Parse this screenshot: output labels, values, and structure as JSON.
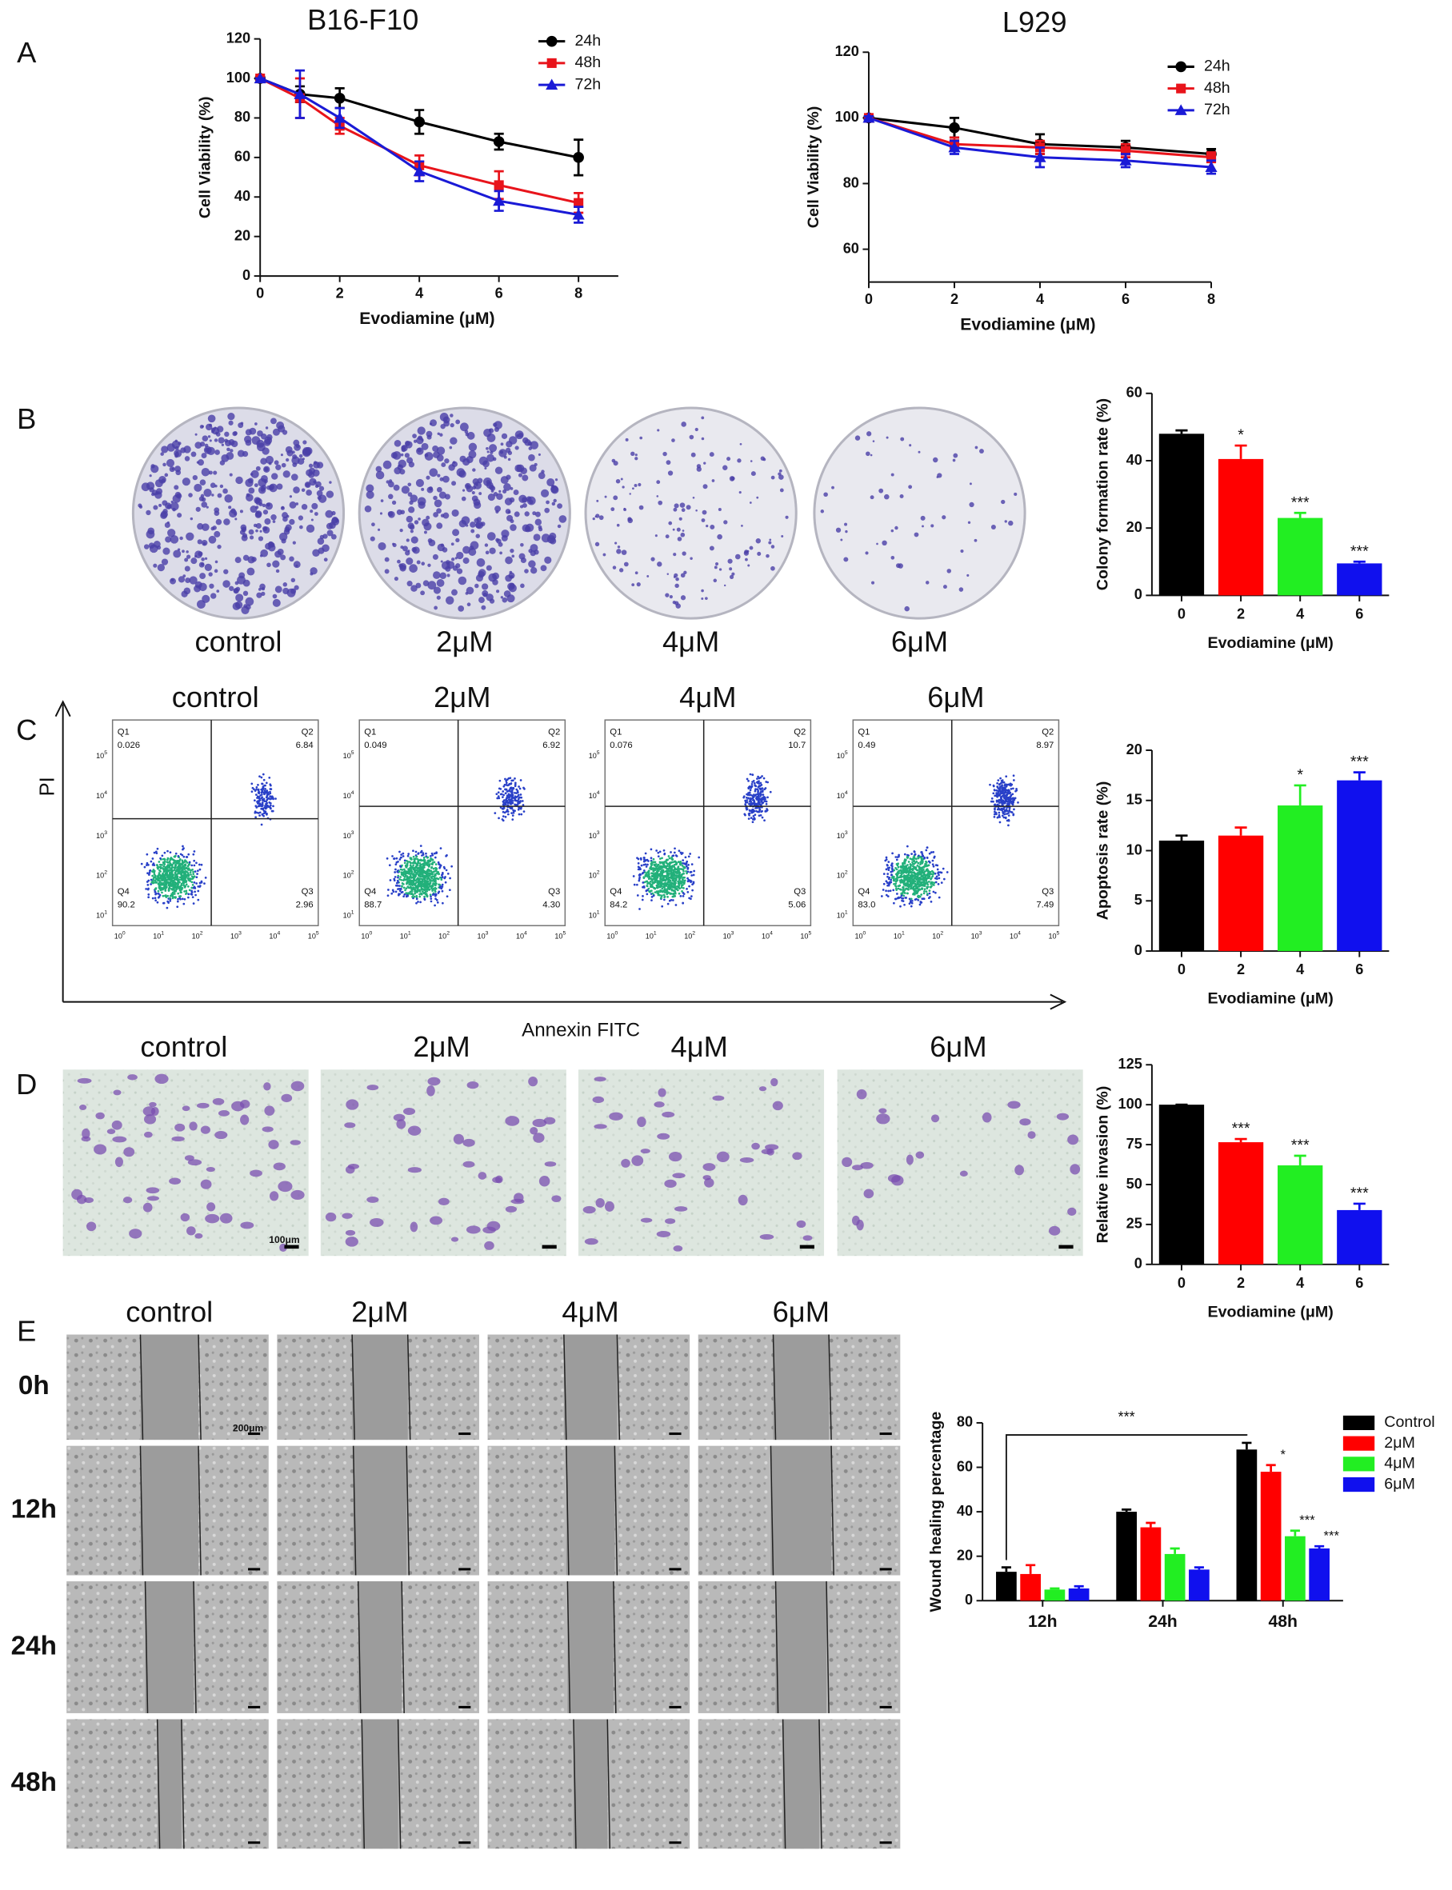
{
  "chart_data": [
    {
      "type": "line",
      "title": "B16-F10",
      "x": [
        0,
        1,
        2,
        4,
        6,
        8
      ],
      "xlim": [
        0,
        9
      ],
      "xticks": [
        0,
        2,
        4,
        6,
        8
      ],
      "ylim": [
        0,
        120
      ],
      "yticks": [
        0,
        20,
        40,
        60,
        80,
        100,
        120
      ],
      "x_label": "Evodiamine (μM)",
      "y_label": "Cell Viability (%)",
      "legend": "upper right",
      "series": [
        {
          "name": "24h",
          "color": "#000000",
          "marker": "circle",
          "values": [
            100,
            92,
            90,
            78,
            68,
            60
          ],
          "errors": [
            0,
            4,
            5,
            6,
            4,
            9
          ]
        },
        {
          "name": "48h",
          "color": "#e8141b",
          "marker": "square",
          "values": [
            100,
            90,
            76,
            56,
            46,
            37
          ],
          "errors": [
            0,
            10,
            4,
            5,
            7,
            5
          ]
        },
        {
          "name": "72h",
          "color": "#1a1ad6",
          "marker": "triangle",
          "values": [
            100,
            92,
            80,
            53,
            38,
            31
          ],
          "errors": [
            0,
            12,
            5,
            5,
            5,
            4
          ]
        }
      ]
    },
    {
      "type": "line",
      "title": "L929",
      "x": [
        0,
        2,
        4,
        6,
        8
      ],
      "xlim": [
        0,
        8
      ],
      "xticks": [
        0,
        2,
        4,
        6,
        8
      ],
      "ylim": [
        50,
        120
      ],
      "yticks": [
        60,
        80,
        100,
        120
      ],
      "x_label": "Evodiamine (μM)",
      "y_label": "Cell Viability (%)",
      "legend": "upper right",
      "series": [
        {
          "name": "24h",
          "color": "#000000",
          "marker": "circle",
          "values": [
            100,
            97,
            92,
            91,
            89
          ],
          "errors": [
            0.5,
            3,
            3,
            2,
            1.5
          ]
        },
        {
          "name": "48h",
          "color": "#e8141b",
          "marker": "square",
          "values": [
            100,
            92,
            91,
            90,
            88
          ],
          "errors": [
            0.5,
            2,
            2,
            2,
            1.5
          ]
        },
        {
          "name": "72h",
          "color": "#1a1ad6",
          "marker": "triangle",
          "values": [
            100,
            91,
            88,
            87,
            85
          ],
          "errors": [
            0.5,
            2,
            3,
            2,
            2
          ]
        }
      ]
    },
    {
      "type": "bar",
      "categories": [
        "0",
        "2",
        "4",
        "6"
      ],
      "values": [
        48,
        40.5,
        23,
        9.5
      ],
      "errors": [
        1,
        4,
        1.5,
        0.5
      ],
      "colors": [
        "#000000",
        "#ff0000",
        "#22ee22",
        "#1010ee"
      ],
      "stars": [
        null,
        "*",
        "***",
        "***"
      ],
      "ylim": [
        0,
        60
      ],
      "yticks": [
        0,
        20,
        40,
        60
      ],
      "x_label": "Evodiamine (μM)",
      "y_label": "Colony formation rate (%)"
    },
    {
      "type": "bar",
      "categories": [
        "0",
        "2",
        "4",
        "6"
      ],
      "values": [
        11,
        11.5,
        14.5,
        17
      ],
      "errors": [
        0.5,
        0.8,
        2,
        0.8
      ],
      "colors": [
        "#000000",
        "#ff0000",
        "#22ee22",
        "#1010ee"
      ],
      "stars": [
        null,
        null,
        "*",
        "***"
      ],
      "ylim": [
        0,
        20
      ],
      "yticks": [
        0,
        5,
        10,
        15,
        20
      ],
      "x_label": "Evodiamine (μM)",
      "y_label": "Apoptosis rate (%)"
    },
    {
      "type": "bar",
      "categories": [
        "0",
        "2",
        "4",
        "6"
      ],
      "values": [
        100,
        76.5,
        62,
        34
      ],
      "errors": [
        0,
        2,
        6,
        4
      ],
      "colors": [
        "#000000",
        "#ff0000",
        "#22ee22",
        "#1010ee"
      ],
      "stars": [
        null,
        "***",
        "***",
        "***"
      ],
      "ylim": [
        0,
        125
      ],
      "yticks": [
        0,
        25,
        50,
        75,
        100,
        125
      ],
      "x_label": "Evodiamine (μM)",
      "y_label": "Relative invasion (%)"
    },
    {
      "type": "grouped_bar",
      "categories": [
        "12h",
        "24h",
        "48h"
      ],
      "ylim": [
        0,
        80
      ],
      "yticks": [
        0,
        20,
        40,
        60,
        80
      ],
      "y_label": "Wound healing percentage",
      "legend": "upper right",
      "bracket_label": "***",
      "series": [
        {
          "name": "Control",
          "color": "#000000",
          "values": [
            13,
            40,
            68
          ],
          "errors": [
            2,
            1,
            3
          ],
          "stars": [
            null,
            null,
            null
          ]
        },
        {
          "name": "2μM",
          "color": "#ff0000",
          "values": [
            12,
            33,
            58
          ],
          "errors": [
            4,
            2,
            3
          ],
          "stars": [
            null,
            null,
            "*"
          ]
        },
        {
          "name": "4μM",
          "color": "#22ee22",
          "values": [
            5,
            21,
            29
          ],
          "errors": [
            0.5,
            2.5,
            2.5
          ],
          "stars": [
            null,
            null,
            "***"
          ]
        },
        {
          "name": "6μM",
          "color": "#1010ee",
          "values": [
            5.5,
            14,
            23.5
          ],
          "errors": [
            1,
            1,
            1
          ],
          "stars": [
            null,
            null,
            "***"
          ]
        }
      ]
    }
  ],
  "figure": {
    "panel_labels": [
      "A",
      "B",
      "C",
      "D",
      "E"
    ],
    "plate_labels": [
      "control",
      "2μM",
      "4μM",
      "6μM"
    ],
    "flow": {
      "titles": [
        "control",
        "2μM",
        "4μM",
        "6μM"
      ],
      "y_label": "PI",
      "x_label": "Annexin FITC",
      "quadrant_names": [
        "Q1",
        "Q2",
        "Q3",
        "Q4"
      ],
      "plots": [
        [
          "0.026",
          "6.84",
          "2.96",
          "90.2"
        ],
        [
          "0.049",
          "6.92",
          "4.30",
          "88.7"
        ],
        [
          "0.076",
          "10.7",
          "5.06",
          "84.2"
        ],
        [
          "0.49",
          "8.97",
          "7.49",
          "83.0"
        ]
      ],
      "tick_base": "10",
      "tick_exponents": [
        "0",
        "1",
        "2",
        "3",
        "4",
        "5"
      ]
    },
    "invasion_labels": [
      "control",
      "2μM",
      "4μM",
      "6μM"
    ],
    "invasion_scale_bar": "100μm",
    "wound": {
      "column_labels": [
        "control",
        "2μM",
        "4μM",
        "6μM"
      ],
      "row_labels": [
        "0h",
        "12h",
        "24h",
        "48h"
      ],
      "scale_bar": "200μm"
    }
  }
}
